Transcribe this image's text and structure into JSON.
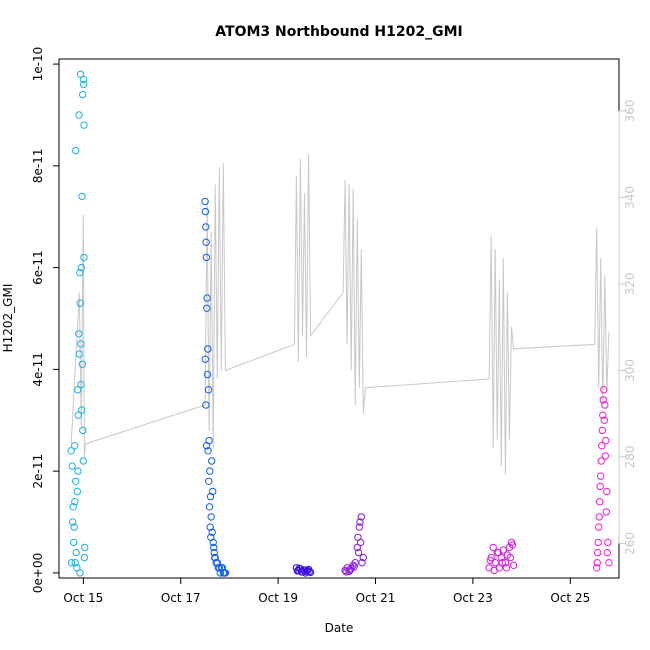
{
  "chart_data": {
    "type": "scatter",
    "title": "ATOM3 Northbound H1202_GMI",
    "xlabel": "Date",
    "ylabel": "H1202_GMI",
    "x_ticks": [
      "Oct 15",
      "Oct 17",
      "Oct 19",
      "Oct 21",
      "Oct 23",
      "Oct 25"
    ],
    "x_range": [
      "2004-10-14T12:00",
      "2004-10-26T00:00"
    ],
    "y_ticks": [
      "0e+00",
      "2e-11",
      "4e-11",
      "6e-11",
      "8e-11",
      "1e-10"
    ],
    "ylim": [
      -1e-12,
      1.01e-10
    ],
    "y2_ticks": [
      "260",
      "280",
      "300",
      "320",
      "340",
      "360"
    ],
    "y2lim": [
      252,
      372
    ],
    "grid": false,
    "series": [
      {
        "kind": "points",
        "color_start": "#1fb8ff",
        "color_end": "#ff1fce",
        "segments": [
          {
            "color": "#1ab0ec",
            "x": [
              "2004-10-14T18:00",
              "2004-10-14T18:30",
              "2004-10-14T19:00",
              "2004-10-14T19:30",
              "2004-10-14T20:00",
              "2004-10-14T20:30",
              "2004-10-14T21:00",
              "2004-10-14T21:30",
              "2004-10-14T22:00",
              "2004-10-14T22:30",
              "2004-10-14T23:00",
              "2004-10-14T23:30",
              "2004-10-15T00:00",
              "2004-10-15T00:30",
              "2004-10-14T18:45",
              "2004-10-14T19:15",
              "2004-10-14T19:45",
              "2004-10-14T20:15",
              "2004-10-14T20:45",
              "2004-10-14T21:15",
              "2004-10-14T21:45",
              "2004-10-14T22:15",
              "2004-10-14T22:45",
              "2004-10-14T23:15",
              "2004-10-14T23:45",
              "2004-10-15T00:15",
              "2004-10-14T18:10",
              "2004-10-14T19:50",
              "2004-10-14T21:20",
              "2004-10-14T22:50",
              "2004-10-15T00:40",
              "2004-10-14T20:10",
              "2004-10-14T23:20",
              "2004-10-14T21:50",
              "2004-10-14T22:40",
              "2004-10-14T23:40",
              "2004-10-15T00:05",
              "2004-10-15T00:10",
              "2004-10-15T00:20",
              "2004-10-14T22:20"
            ],
            "y": [
              2.4e-11,
              2.1e-11,
              1.3e-11,
              9e-12,
              2e-12,
              4e-12,
              1.6e-11,
              3.1e-11,
              4.3e-11,
              5.3e-11,
              6e-11,
              4.1e-11,
              2.2e-11,
              3e-12,
              1e-11,
              6e-12,
              2.5e-11,
              1.8e-11,
              1e-12,
              3.6e-11,
              4.7e-11,
              5.9e-11,
              4.5e-11,
              3.2e-11,
              2.8e-11,
              6.2e-11,
              2e-12,
              1.4e-11,
              2e-11,
              3.7e-11,
              5e-12,
              8.3e-11,
              7.4e-11,
              9e-11,
              9.8e-11,
              9.4e-11,
              9.7e-11,
              9.6e-11,
              8.8e-11,
              0.0
            ]
          },
          {
            "color": "#0f5ff0",
            "x": [
              "2004-10-17T12:00",
              "2004-10-17T12:20",
              "2004-10-17T12:40",
              "2004-10-17T13:00",
              "2004-10-17T13:20",
              "2004-10-17T13:40",
              "2004-10-17T14:00",
              "2004-10-17T14:20",
              "2004-10-17T14:40",
              "2004-10-17T15:00",
              "2004-10-17T15:30",
              "2004-10-17T16:00",
              "2004-10-17T16:30",
              "2004-10-17T17:00",
              "2004-10-17T18:00",
              "2004-10-17T19:00",
              "2004-10-17T20:00",
              "2004-10-17T21:00",
              "2004-10-17T22:00",
              "2004-10-17T12:10",
              "2004-10-17T12:30",
              "2004-10-17T12:50",
              "2004-10-17T13:10",
              "2004-10-17T13:30",
              "2004-10-17T13:50",
              "2004-10-17T14:10",
              "2004-10-17T14:30",
              "2004-10-17T14:50",
              "2004-10-17T15:15",
              "2004-10-17T15:45",
              "2004-10-17T16:15",
              "2004-10-17T16:45",
              "2004-10-17T17:30",
              "2004-10-17T18:30",
              "2004-10-17T19:30",
              "2004-10-17T20:30",
              "2004-10-17T21:30",
              "2004-10-17T12:05",
              "2004-10-17T12:25",
              "2004-10-17T12:45"
            ],
            "y": [
              7.3e-11,
              6.8e-11,
              6.2e-11,
              5.4e-11,
              4.4e-11,
              3.6e-11,
              2.6e-11,
              2e-11,
              1.5e-11,
              1.1e-11,
              8e-12,
              6e-12,
              4e-12,
              3e-12,
              2e-12,
              1e-12,
              1e-12,
              0.0,
              0.0,
              7.1e-11,
              6.5e-11,
              5.2e-11,
              3.9e-11,
              2.4e-11,
              1.8e-11,
              1.3e-11,
              9e-12,
              7e-12,
              2.2e-11,
              1.6e-11,
              5e-12,
              3e-12,
              2e-12,
              1e-12,
              0.0,
              1e-12,
              0.0,
              4.2e-11,
              3.3e-11,
              2.5e-11
            ]
          },
          {
            "color": "#3a10e6",
            "x": [
              "2004-10-19T09:00",
              "2004-10-19T10:00",
              "2004-10-19T11:00",
              "2004-10-19T12:00",
              "2004-10-19T13:00",
              "2004-10-19T14:00",
              "2004-10-19T15:00",
              "2004-10-19T16:00",
              "2004-10-19T09:30",
              "2004-10-19T10:30",
              "2004-10-19T11:30",
              "2004-10-19T12:30",
              "2004-10-19T13:30",
              "2004-10-19T14:30",
              "2004-10-19T15:30"
            ],
            "y": [
              1e-12,
              5e-13,
              8e-13,
              2e-13,
              6e-13,
              3e-13,
              7e-13,
              1e-13,
              4e-13,
              9e-13,
              2e-13,
              6e-13,
              0.0,
              5e-13,
              3e-13
            ]
          },
          {
            "color": "#8a18e6",
            "x": [
              "2004-10-20T09:00",
              "2004-10-20T10:00",
              "2004-10-20T11:00",
              "2004-10-20T12:00",
              "2004-10-20T13:00",
              "2004-10-20T14:00",
              "2004-10-20T15:00",
              "2004-10-20T16:00",
              "2004-10-20T17:00",
              "2004-10-20T18:00",
              "2004-10-20T15:20",
              "2004-10-20T15:40",
              "2004-10-20T16:20",
              "2004-10-20T16:40",
              "2004-10-20T17:20",
              "2004-10-20T09:30",
              "2004-10-20T11:30",
              "2004-10-20T13:30"
            ],
            "y": [
              5e-13,
              1e-12,
              3e-13,
              8e-13,
              1.5e-12,
              2e-12,
              5e-12,
              9e-12,
              1.1e-11,
              3e-12,
              7e-12,
              4e-12,
              1e-11,
              6e-12,
              2e-12,
              2e-13,
              6e-13,
              1.2e-12
            ]
          },
          {
            "color": "#d51ae6",
            "x": [
              "2004-10-23T08:00",
              "2004-10-23T09:00",
              "2004-10-23T10:00",
              "2004-10-23T11:00",
              "2004-10-23T12:00",
              "2004-10-23T13:00",
              "2004-10-23T14:00",
              "2004-10-23T15:00",
              "2004-10-23T16:00",
              "2004-10-23T17:00",
              "2004-10-23T18:00",
              "2004-10-23T19:00",
              "2004-10-23T20:00",
              "2004-10-23T08:30",
              "2004-10-23T10:30",
              "2004-10-23T12:30",
              "2004-10-23T14:30",
              "2004-10-23T16:30",
              "2004-10-23T18:30",
              "2004-10-23T19:30"
            ],
            "y": [
              1e-12,
              3e-12,
              5e-12,
              2e-12,
              4e-12,
              1e-12,
              3e-12,
              4.5e-12,
              2e-12,
              3.5e-12,
              5e-12,
              6e-12,
              1.5e-12,
              2.5e-12,
              5e-13,
              4e-12,
              2e-12,
              1e-12,
              3e-12,
              5.5e-12
            ]
          },
          {
            "color": "#fa1ad2",
            "x": [
              "2004-10-25T13:00",
              "2004-10-25T13:30",
              "2004-10-25T14:00",
              "2004-10-25T14:30",
              "2004-10-25T15:00",
              "2004-10-25T15:30",
              "2004-10-25T16:00",
              "2004-10-25T16:30",
              "2004-10-25T17:00",
              "2004-10-25T17:30",
              "2004-10-25T18:00",
              "2004-10-25T18:30",
              "2004-10-25T19:00",
              "2004-10-25T13:15",
              "2004-10-25T13:45",
              "2004-10-25T14:15",
              "2004-10-25T14:45",
              "2004-10-25T15:15",
              "2004-10-25T15:45",
              "2004-10-25T16:15",
              "2004-10-25T16:45",
              "2004-10-25T17:15",
              "2004-10-25T17:45",
              "2004-10-25T18:15"
            ],
            "y": [
              1e-12,
              4e-12,
              9e-12,
              1.4e-11,
              1.9e-11,
              2.5e-11,
              3.1e-11,
              3.6e-11,
              3.3e-11,
              2.6e-11,
              1.6e-11,
              6e-12,
              2e-12,
              2e-12,
              6e-12,
              1.1e-11,
              1.7e-11,
              2.2e-11,
              2.8e-11,
              3.4e-11,
              3e-11,
              2.3e-11,
              1.2e-11,
              4e-12
            ]
          }
        ]
      },
      {
        "kind": "line",
        "axis": "right",
        "color": "#c8c8c8",
        "x": [
          "2004-10-14T18:00",
          "2004-10-14T22:00",
          "2004-10-14T23:00",
          "2004-10-15T00:00",
          "2004-10-15T00:30",
          "2004-10-15T01:00",
          "2004-10-17T12:00",
          "2004-10-17T13:00",
          "2004-10-17T14:00",
          "2004-10-17T15:00",
          "2004-10-17T16:00",
          "2004-10-17T17:00",
          "2004-10-17T18:00",
          "2004-10-17T19:00",
          "2004-10-17T20:00",
          "2004-10-17T21:00",
          "2004-10-17T22:00",
          "2004-10-19T08:00",
          "2004-10-19T09:00",
          "2004-10-19T10:00",
          "2004-10-19T11:00",
          "2004-10-19T12:00",
          "2004-10-19T13:00",
          "2004-10-19T14:00",
          "2004-10-19T15:00",
          "2004-10-19T16:00",
          "2004-10-20T08:00",
          "2004-10-20T09:00",
          "2004-10-20T10:00",
          "2004-10-20T11:00",
          "2004-10-20T12:00",
          "2004-10-20T13:00",
          "2004-10-20T14:00",
          "2004-10-20T15:00",
          "2004-10-20T16:00",
          "2004-10-20T17:00",
          "2004-10-20T18:00",
          "2004-10-20T19:00",
          "2004-10-23T08:00",
          "2004-10-23T09:00",
          "2004-10-23T10:00",
          "2004-10-23T11:00",
          "2004-10-23T12:00",
          "2004-10-23T13:00",
          "2004-10-23T14:00",
          "2004-10-23T15:00",
          "2004-10-23T16:00",
          "2004-10-23T17:00",
          "2004-10-23T18:00",
          "2004-10-23T19:00",
          "2004-10-23T20:00",
          "2004-10-25T12:00",
          "2004-10-25T13:00",
          "2004-10-25T14:00",
          "2004-10-25T15:00",
          "2004-10-25T16:00",
          "2004-10-25T17:00",
          "2004-10-25T18:00",
          "2004-10-25T19:00"
        ],
        "y": [
          283,
          318,
          287,
          336,
          280,
          283,
          292,
          339,
          286,
          332,
          282,
          343,
          298,
          347,
          300,
          348,
          300,
          306,
          345,
          302,
          349,
          308,
          341,
          303,
          350,
          308,
          318,
          344,
          306,
          343,
          300,
          342,
          292,
          335,
          296,
          328,
          290,
          296,
          298,
          331,
          282,
          328,
          284,
          321,
          278,
          326,
          276,
          318,
          284,
          310,
          305,
          306,
          333,
          296,
          326,
          292,
          322,
          295,
          309
        ]
      }
    ]
  }
}
